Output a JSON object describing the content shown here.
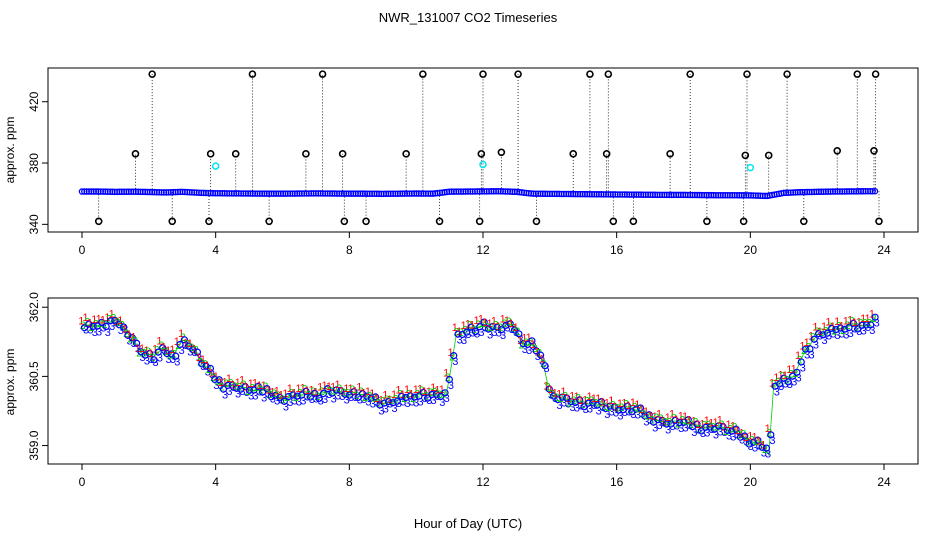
{
  "title": "NWR_131007  CO2 Timeseries",
  "xlabel": "Hour of Day (UTC)",
  "colors": {
    "black": "#000000",
    "blue": "#0000ff",
    "cyan": "#00e5ee",
    "red": "#ff0000",
    "green": "#00cc00",
    "orange": "#ff8c00"
  },
  "chart_data": [
    {
      "type": "scatter",
      "ylabel": "approx. ppm",
      "xlim": [
        0,
        24
      ],
      "ylim": [
        335,
        442
      ],
      "x_ticks": [
        "0",
        "4",
        "8",
        "12",
        "16",
        "20",
        "24"
      ],
      "y_ticks": [
        "340",
        "380",
        "420"
      ],
      "baseline_series": {
        "name": "continuous",
        "x": [
          0.0,
          0.5,
          1.0,
          1.5,
          2.0,
          2.5,
          3.0,
          3.5,
          4.0,
          4.5,
          5.0,
          5.5,
          6.0,
          6.5,
          7.0,
          7.5,
          8.0,
          8.5,
          9.0,
          9.5,
          10.0,
          10.5,
          11.0,
          11.5,
          12.0,
          12.5,
          13.0,
          13.5,
          14.0,
          14.5,
          15.0,
          15.5,
          16.0,
          16.5,
          17.0,
          17.5,
          18.0,
          18.5,
          19.0,
          19.5,
          20.0,
          20.5,
          21.0,
          21.5,
          22.0,
          22.5,
          23.0,
          23.5,
          23.8
        ],
        "y": [
          361.4,
          361.4,
          361.2,
          361.3,
          361.1,
          360.8,
          361.2,
          360.6,
          360.3,
          360.2,
          360.1,
          360.0,
          360.0,
          360.1,
          360.2,
          360.1,
          360.0,
          360.0,
          359.9,
          360.0,
          360.1,
          360.0,
          361.3,
          361.4,
          361.5,
          361.6,
          361.2,
          360.0,
          359.9,
          359.8,
          359.7,
          359.6,
          359.5,
          359.4,
          359.3,
          359.2,
          359.2,
          359.1,
          359.0,
          359.0,
          358.9,
          358.5,
          360.5,
          361.0,
          361.2,
          361.4,
          361.5,
          361.6,
          361.6
        ]
      },
      "spikes": {
        "name": "flask / spikes",
        "x": [
          0.5,
          1.6,
          2.1,
          2.7,
          3.8,
          3.85,
          4.6,
          5.1,
          5.6,
          6.7,
          7.2,
          7.8,
          7.85,
          8.5,
          9.7,
          10.2,
          10.7,
          11.9,
          11.95,
          12.0,
          12.55,
          13.05,
          13.6,
          14.7,
          15.2,
          15.7,
          15.75,
          15.9,
          16.5,
          17.6,
          18.2,
          18.7,
          19.8,
          19.85,
          19.9,
          20.55,
          21.1,
          21.6,
          22.6,
          23.2,
          23.7,
          23.75,
          23.85
        ],
        "y": [
          342,
          386,
          438,
          342,
          342,
          386,
          386,
          438,
          342,
          386,
          438,
          386,
          342,
          342,
          386,
          438,
          342,
          342,
          386,
          438,
          387,
          438,
          342,
          386,
          438,
          386,
          438,
          342,
          342,
          386,
          438,
          342,
          342,
          385,
          438,
          385,
          438,
          342,
          388,
          438,
          388,
          438,
          342
        ]
      },
      "highlight_points": {
        "name": "cyan",
        "x": [
          4.0,
          12.0,
          20.0
        ],
        "y": [
          378,
          379,
          377
        ]
      }
    },
    {
      "type": "scatter",
      "ylabel": "approx. ppm",
      "xlim": [
        0,
        24
      ],
      "ylim": [
        358.6,
        362.2
      ],
      "x_ticks": [
        "0",
        "4",
        "8",
        "12",
        "16",
        "20",
        "24"
      ],
      "y_ticks": [
        "359.0",
        "360.5",
        "362.0"
      ],
      "series": [
        {
          "name": "1",
          "symbol": "1",
          "color": "red",
          "offset": 0.12
        },
        {
          "name": "2",
          "symbol": "2",
          "color": "green",
          "offset": 0.04
        },
        {
          "name": "o",
          "symbol": "o",
          "color": "blue",
          "offset": 0.0
        },
        {
          "name": "3",
          "symbol": "3",
          "color": "blue",
          "offset": -0.1
        }
      ],
      "x": [
        0.0,
        0.3,
        0.6,
        0.9,
        1.2,
        1.5,
        1.8,
        2.1,
        2.4,
        2.7,
        3.0,
        3.3,
        3.6,
        3.9,
        4.2,
        4.5,
        5.0,
        5.5,
        6.0,
        6.5,
        7.0,
        7.5,
        8.0,
        8.5,
        9.0,
        9.5,
        10.0,
        10.5,
        10.9,
        11.0,
        11.2,
        11.5,
        12.0,
        12.5,
        12.8,
        13.2,
        13.5,
        13.8,
        14.0,
        14.5,
        15.0,
        15.5,
        16.0,
        16.5,
        17.0,
        17.5,
        18.0,
        18.5,
        19.0,
        19.5,
        20.0,
        20.4,
        20.55,
        20.7,
        21.0,
        21.3,
        21.6,
        22.0,
        22.5,
        23.0,
        23.5,
        23.8
      ],
      "y": [
        361.6,
        361.6,
        361.6,
        361.7,
        361.6,
        361.3,
        361.0,
        360.9,
        361.1,
        360.9,
        361.3,
        361.1,
        360.8,
        360.5,
        360.3,
        360.3,
        360.2,
        360.2,
        360.0,
        360.1,
        360.1,
        360.2,
        360.1,
        360.1,
        359.9,
        360.0,
        360.1,
        360.1,
        360.1,
        360.5,
        361.4,
        361.5,
        361.6,
        361.5,
        361.7,
        361.2,
        361.2,
        360.8,
        360.1,
        360.0,
        359.9,
        359.9,
        359.8,
        359.8,
        359.6,
        359.5,
        359.5,
        359.4,
        359.4,
        359.3,
        359.1,
        359.0,
        358.8,
        360.3,
        360.4,
        360.5,
        361.0,
        361.4,
        361.5,
        361.6,
        361.6,
        361.8
      ]
    }
  ]
}
